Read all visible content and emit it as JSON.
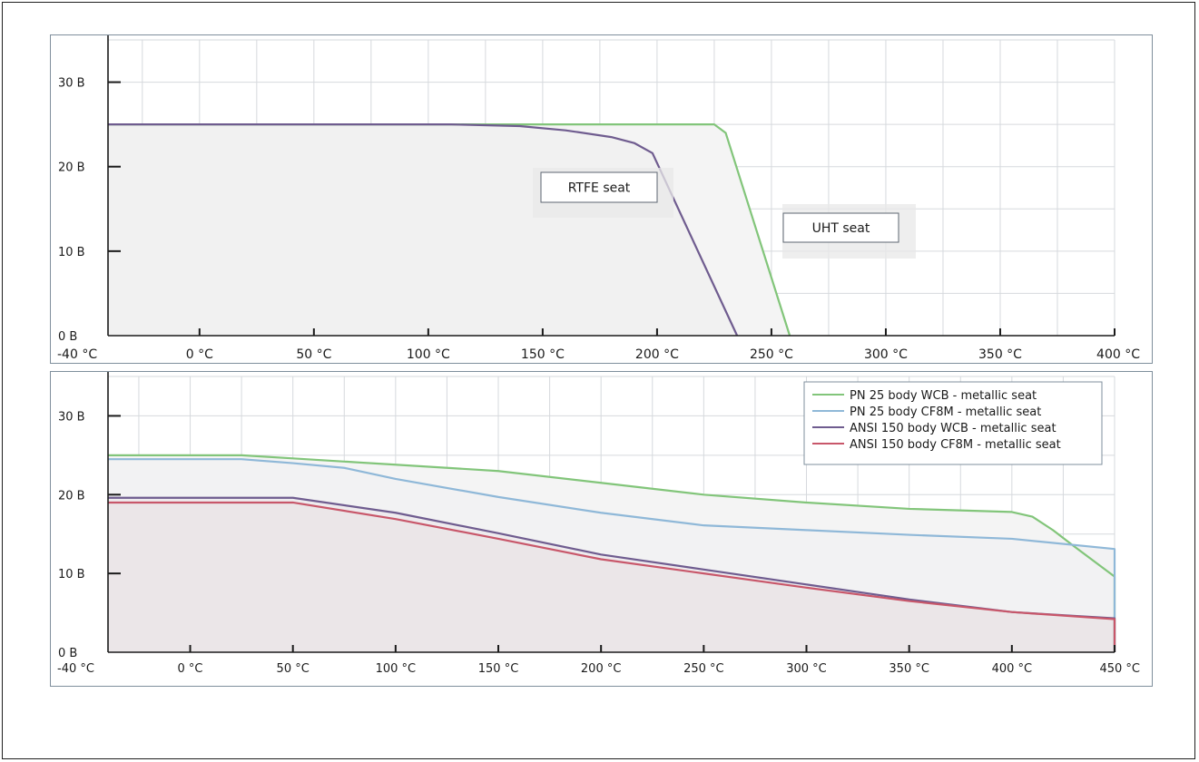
{
  "colors": {
    "green": "#82c57a",
    "blue": "#8fb8d8",
    "purple": "#6f5c8f",
    "red": "#c8576a",
    "grid": "#d6d9dd",
    "axis": "#1a1a1a",
    "frame": "#7f8f9c"
  },
  "chart_data": [
    {
      "type": "area",
      "title": "",
      "xlabel": "",
      "ylabel": "",
      "xlim": [
        -40,
        400
      ],
      "ylim": [
        0,
        35
      ],
      "x_ticks": [
        -40,
        0,
        50,
        100,
        150,
        200,
        250,
        300,
        350,
        400
      ],
      "x_tick_labels": [
        "-40 °C",
        "0 °C",
        "50 °C",
        "100 °C",
        "150 °C",
        "200 °C",
        "250 °C",
        "300 °C",
        "350 °C",
        "400 °C"
      ],
      "y_ticks": [
        0,
        10,
        20,
        30
      ],
      "y_tick_labels": [
        "0 B",
        "10 B",
        "20 B",
        "30 B"
      ],
      "grid": true,
      "series": [
        {
          "name": "UHT seat",
          "color": "#82c57a",
          "points": [
            [
              -40,
              25
            ],
            [
              225,
              25
            ],
            [
              230,
              24
            ],
            [
              258,
              0
            ]
          ]
        },
        {
          "name": "RTFE seat",
          "color": "#6f5c8f",
          "points": [
            [
              -40,
              25
            ],
            [
              110,
              25
            ],
            [
              140,
              24.8
            ],
            [
              160,
              24.3
            ],
            [
              180,
              23.5
            ],
            [
              190,
              22.8
            ],
            [
              198,
              21.6
            ],
            [
              235,
              0
            ]
          ]
        }
      ]
    },
    {
      "type": "area",
      "title": "",
      "xlabel": "",
      "ylabel": "",
      "xlim": [
        -40,
        450
      ],
      "ylim": [
        0,
        35
      ],
      "x_ticks": [
        -40,
        0,
        50,
        100,
        150,
        200,
        250,
        300,
        350,
        400,
        450
      ],
      "x_tick_labels": [
        "-40 °C",
        "0 °C",
        "50 °C",
        "100 °C",
        "150 °C",
        "200 °C",
        "250 °C",
        "300 °C",
        "350 °C",
        "400 °C",
        "450 °C"
      ],
      "y_ticks": [
        0,
        10,
        20,
        30
      ],
      "y_tick_labels": [
        "0 B",
        "10 B",
        "20 B",
        "30 B"
      ],
      "grid": true,
      "legend": "top-right",
      "series": [
        {
          "name": "PN 25 body WCB - metallic seat",
          "color": "#82c57a",
          "points": [
            [
              -40,
              25
            ],
            [
              25,
              25
            ],
            [
              50,
              24.6
            ],
            [
              75,
              24.2
            ],
            [
              100,
              23.8
            ],
            [
              150,
              23
            ],
            [
              200,
              21.5
            ],
            [
              250,
              20
            ],
            [
              300,
              19
            ],
            [
              350,
              18.2
            ],
            [
              400,
              17.8
            ],
            [
              410,
              17.2
            ],
            [
              420,
              15.5
            ],
            [
              430,
              13.5
            ],
            [
              450,
              9.6
            ]
          ]
        },
        {
          "name": "PN 25 body CF8M - metallic seat",
          "color": "#8fb8d8",
          "points": [
            [
              -40,
              24.5
            ],
            [
              25,
              24.5
            ],
            [
              50,
              24
            ],
            [
              75,
              23.4
            ],
            [
              100,
              22
            ],
            [
              150,
              19.7
            ],
            [
              200,
              17.7
            ],
            [
              250,
              16.1
            ],
            [
              300,
              15.5
            ],
            [
              350,
              14.9
            ],
            [
              400,
              14.4
            ],
            [
              450,
              13.1
            ]
          ]
        },
        {
          "name": "ANSI 150 body WCB - metallic seat",
          "color": "#6f5c8f",
          "points": [
            [
              -40,
              19.6
            ],
            [
              50,
              19.6
            ],
            [
              100,
              17.7
            ],
            [
              150,
              15.1
            ],
            [
              200,
              12.4
            ],
            [
              250,
              10.5
            ],
            [
              300,
              8.6
            ],
            [
              350,
              6.7
            ],
            [
              400,
              5.1
            ],
            [
              450,
              4.3
            ]
          ]
        },
        {
          "name": "ANSI 150 body CF8M - metallic seat",
          "color": "#c8576a",
          "points": [
            [
              -40,
              19
            ],
            [
              50,
              19
            ],
            [
              100,
              16.9
            ],
            [
              150,
              14.4
            ],
            [
              200,
              11.8
            ],
            [
              250,
              10
            ],
            [
              300,
              8.2
            ],
            [
              350,
              6.5
            ],
            [
              400,
              5.1
            ],
            [
              450,
              4.2
            ]
          ]
        }
      ]
    }
  ]
}
